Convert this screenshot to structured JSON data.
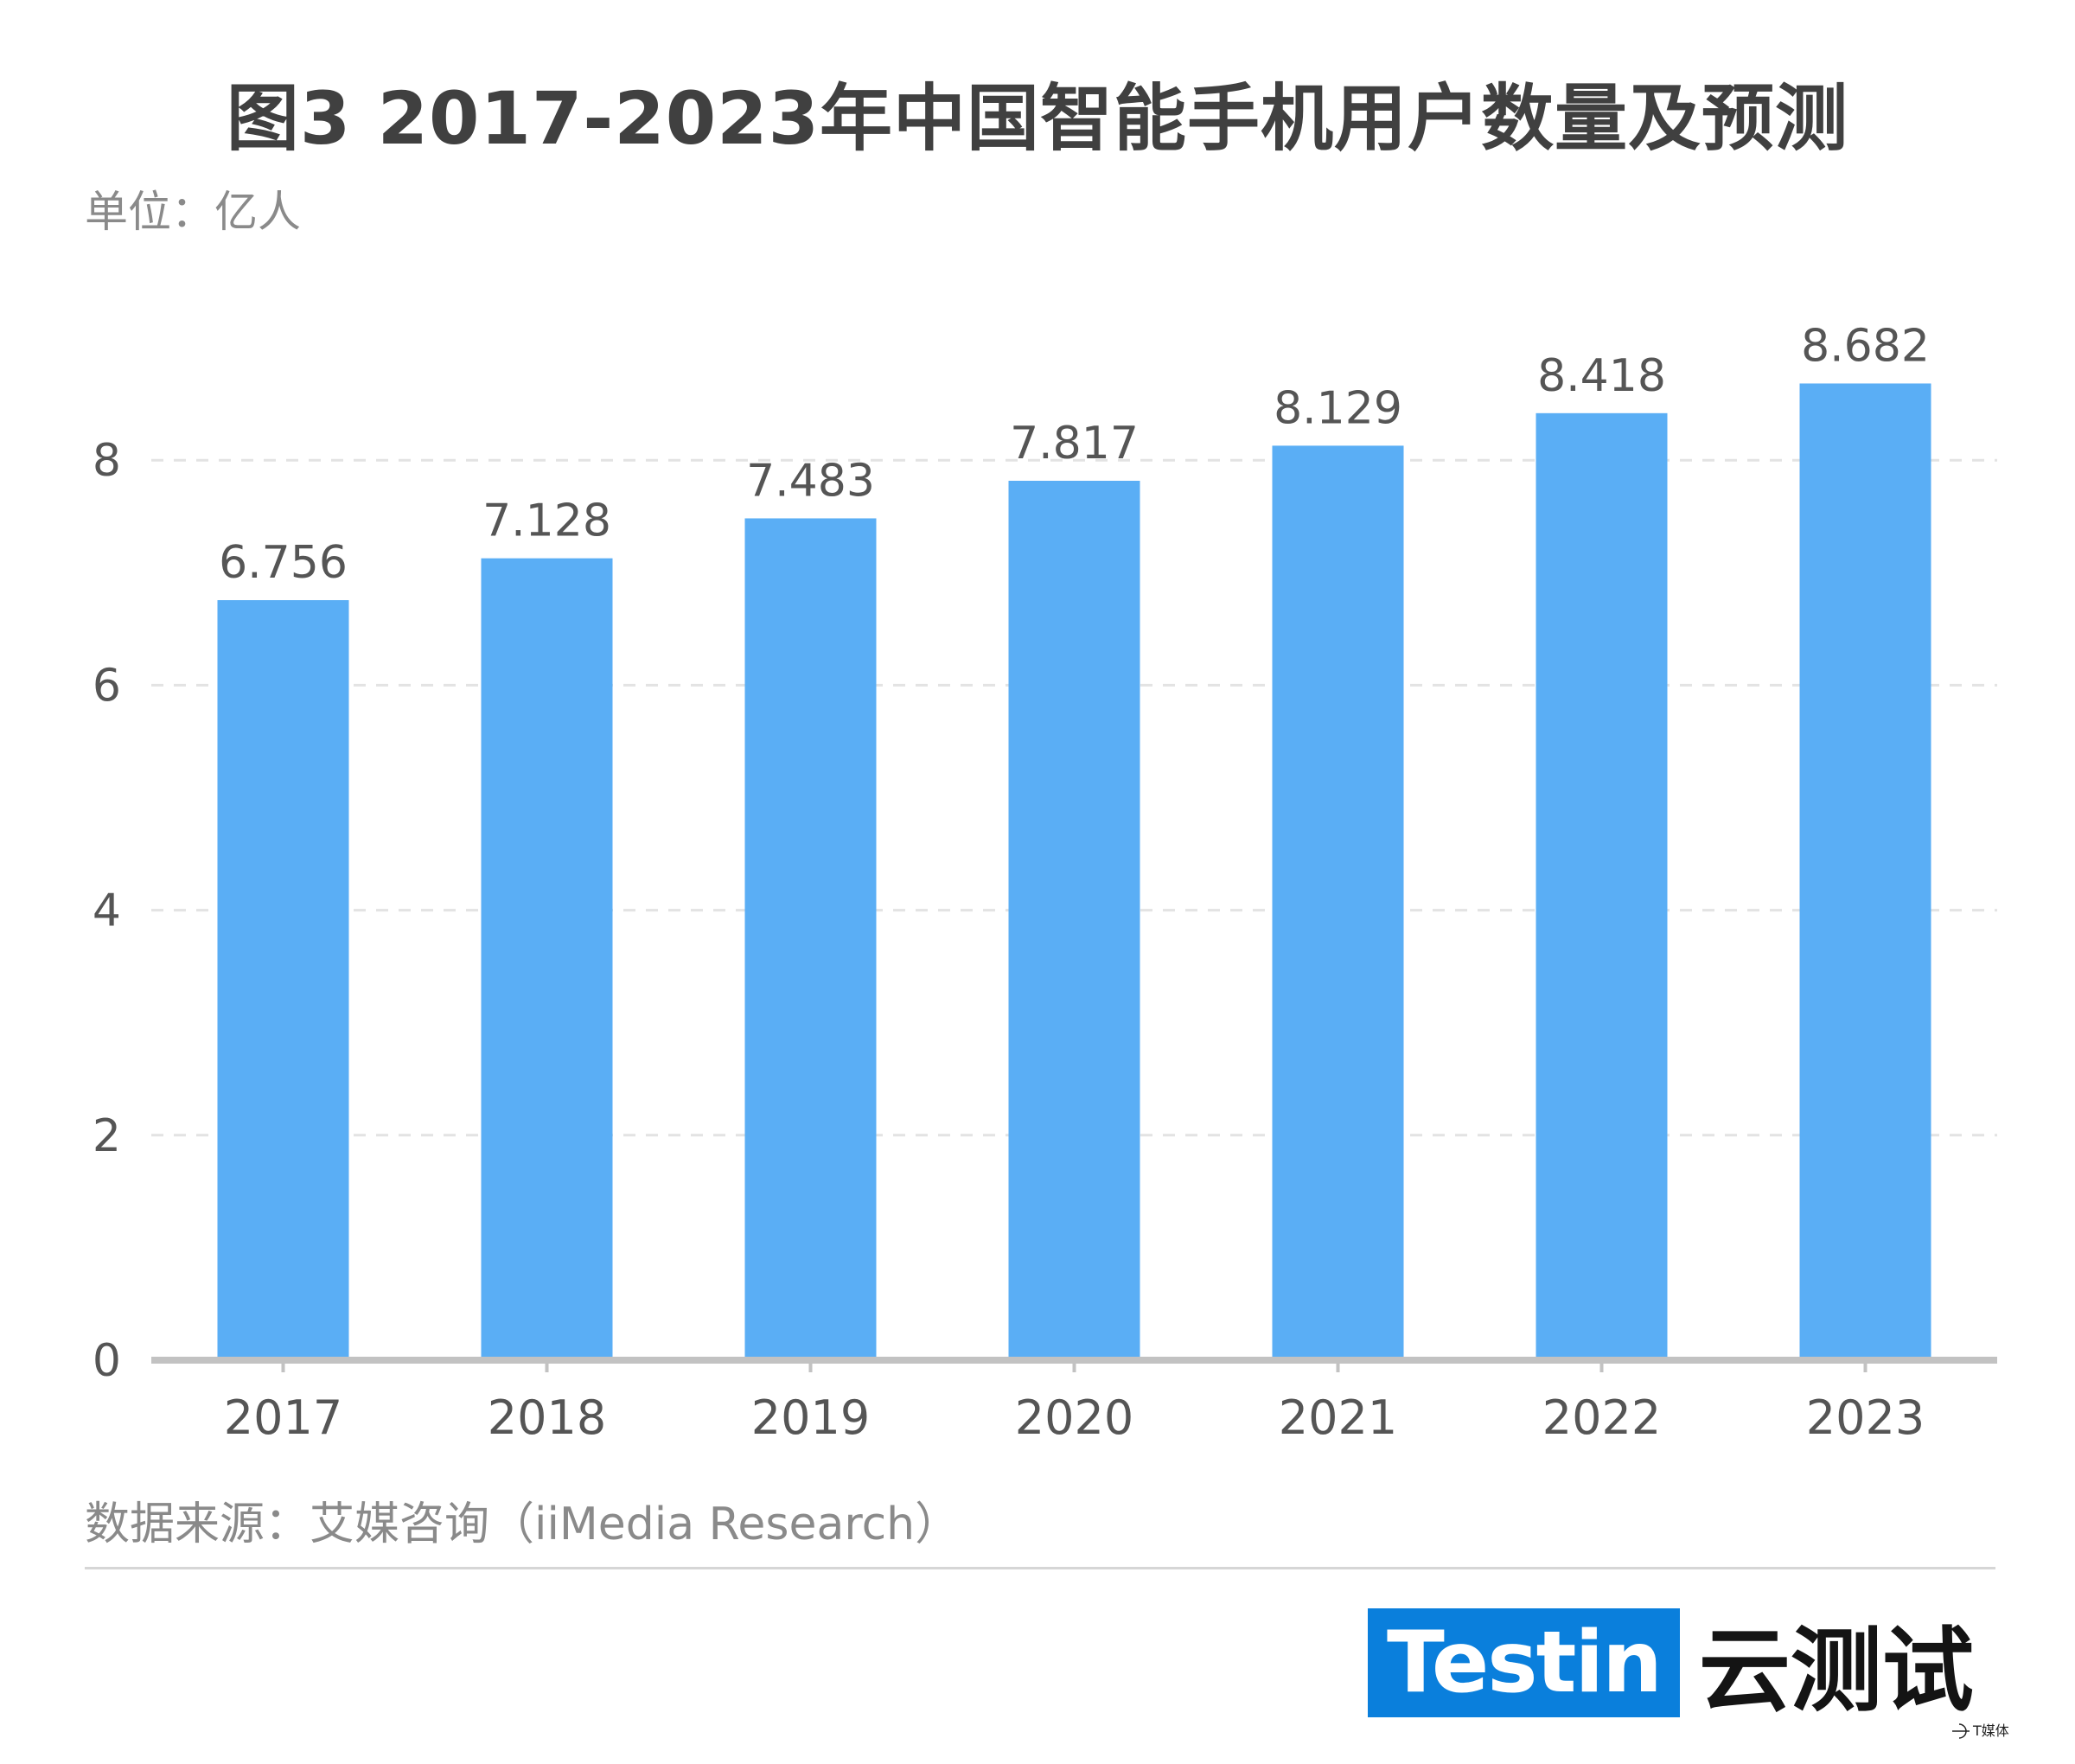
{
  "header": {
    "title": "图3 2017-2023年中国智能手机用户数量及预测",
    "unit": "单位：亿人"
  },
  "chart_data": {
    "type": "bar",
    "title": "图3 2017-2023年中国智能手机用户数量及预测",
    "ylabel": "单位：亿人",
    "categories": [
      "2017",
      "2018",
      "2019",
      "2020",
      "2021",
      "2022",
      "2023"
    ],
    "values": [
      6.756,
      7.128,
      7.483,
      7.817,
      8.129,
      8.418,
      8.682
    ],
    "value_labels": [
      "6.756",
      "7.128",
      "7.483",
      "7.817",
      "8.129",
      "8.418",
      "8.682"
    ],
    "ylim": [
      0,
      10
    ],
    "yticks": [
      0,
      2,
      4,
      6,
      8
    ],
    "grid": true,
    "bar_color": "#5aaef5",
    "axis_color": "#c2c2c2",
    "grid_color": "#e3e3e3",
    "label_color": "#555555"
  },
  "footer": {
    "source": "数据来源：艾媒咨询（iiMedia Research）",
    "logo_brand": "Testin",
    "logo_text": "云测试",
    "logo_color": "#0a7fdc",
    "watermark": "T媒体"
  }
}
